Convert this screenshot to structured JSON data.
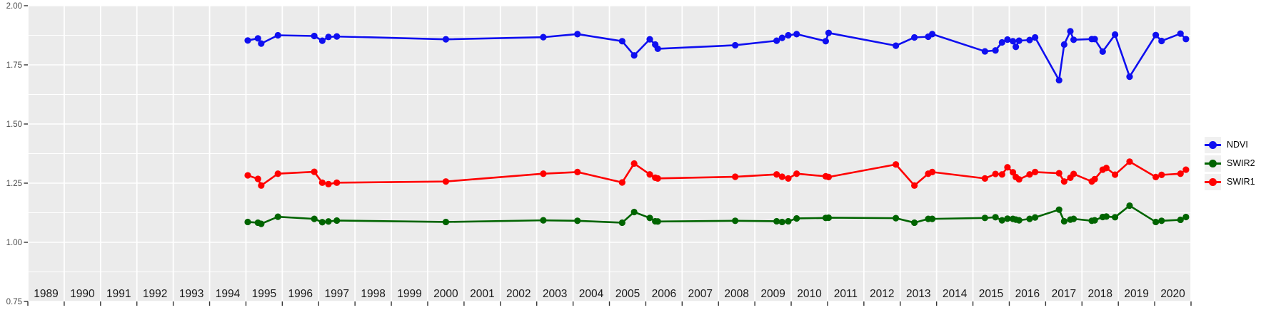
{
  "palette": {
    "background": "#FFFFFF",
    "panel_bg": "#EBEBEB",
    "grid": "#FFFFFF",
    "axis_tick": "#333333",
    "y_label_text": "#4D4D4D",
    "year_label_text": "#1A1A1A",
    "legend_key_bg": "#F0F0F0",
    "ndvi_blue": "#0F0FF0",
    "swir2_green": "#006400",
    "swir1_red": "#FF0000"
  },
  "chart_data": {
    "type": "line",
    "title": "",
    "xlabel": "",
    "ylabel": "",
    "grid": "on",
    "x_axis": {
      "year_labels": [
        "1989",
        "1990",
        "1991",
        "1992",
        "1993",
        "1994",
        "1995",
        "1996",
        "1997",
        "1998",
        "1999",
        "2000",
        "2001",
        "2002",
        "2003",
        "2004",
        "2005",
        "2006",
        "2007",
        "2008",
        "2009",
        "2010",
        "2011",
        "2012",
        "2013",
        "2014",
        "2015",
        "2016",
        "2017",
        "2018",
        "2019",
        "2020"
      ],
      "range_years": [
        1989,
        2021
      ]
    },
    "y_axis": {
      "tick_labels": [
        "2.00",
        "1.75",
        "1.50",
        "1.25",
        "1.00",
        "0.75"
      ],
      "tick_values": [
        2.0,
        1.75,
        1.5,
        1.25,
        1.0,
        0.75
      ],
      "minor_tick_values": [
        1.875,
        1.625,
        1.375,
        1.125,
        0.875
      ],
      "range": [
        0.75,
        2.0
      ]
    },
    "legend": {
      "position": "right",
      "entries": [
        "NDVI",
        "SWIR2",
        "SWIR1"
      ]
    },
    "series": [
      {
        "name": "NDVI",
        "color": "#0F0FF0",
        "x": [
          1995.05,
          1995.33,
          1995.42,
          1995.88,
          1996.88,
          1997.1,
          1997.27,
          1997.5,
          2000.5,
          2003.18,
          2004.12,
          2005.35,
          2005.68,
          2006.11,
          2006.26,
          2006.33,
          2008.46,
          2009.6,
          2009.75,
          2009.92,
          2010.15,
          2010.95,
          2011.03,
          2012.88,
          2013.39,
          2013.77,
          2013.88,
          2015.33,
          2015.62,
          2015.8,
          2015.95,
          2016.1,
          2016.18,
          2016.27,
          2016.56,
          2016.71,
          2017.37,
          2017.51,
          2017.68,
          2017.77,
          2018.27,
          2018.35,
          2018.57,
          2018.91,
          2019.31,
          2020.03,
          2020.19,
          2020.71,
          2020.86
        ],
        "y": [
          1.853,
          1.862,
          1.84,
          1.875,
          1.872,
          1.852,
          1.868,
          1.87,
          1.858,
          1.867,
          1.88,
          1.85,
          1.79,
          1.858,
          1.836,
          1.818,
          1.833,
          1.852,
          1.864,
          1.875,
          1.88,
          1.85,
          1.885,
          1.831,
          1.866,
          1.869,
          1.88,
          1.807,
          1.811,
          1.845,
          1.857,
          1.85,
          1.826,
          1.852,
          1.855,
          1.866,
          1.685,
          1.836,
          1.892,
          1.856,
          1.859,
          1.859,
          1.806,
          1.878,
          1.7,
          1.876,
          1.851,
          1.882,
          1.859
        ]
      },
      {
        "name": "SWIR2",
        "color": "#006400",
        "x": [
          1995.05,
          1995.33,
          1995.42,
          1995.88,
          1996.88,
          1997.1,
          1997.27,
          1997.5,
          2000.5,
          2003.18,
          2004.12,
          2005.35,
          2005.68,
          2006.11,
          2006.26,
          2006.33,
          2008.46,
          2009.6,
          2009.75,
          2009.92,
          2010.15,
          2010.95,
          2011.03,
          2012.88,
          2013.39,
          2013.77,
          2013.88,
          2015.33,
          2015.62,
          2015.8,
          2015.95,
          2016.1,
          2016.18,
          2016.27,
          2016.56,
          2016.71,
          2017.37,
          2017.51,
          2017.68,
          2017.77,
          2018.27,
          2018.35,
          2018.57,
          2018.67,
          2018.91,
          2019.31,
          2020.03,
          2020.19,
          2020.71,
          2020.86
        ],
        "y": [
          1.086,
          1.083,
          1.078,
          1.108,
          1.099,
          1.085,
          1.088,
          1.092,
          1.086,
          1.093,
          1.091,
          1.083,
          1.128,
          1.103,
          1.089,
          1.088,
          1.091,
          1.089,
          1.086,
          1.089,
          1.101,
          1.103,
          1.104,
          1.102,
          1.083,
          1.099,
          1.099,
          1.103,
          1.106,
          1.093,
          1.1,
          1.099,
          1.096,
          1.093,
          1.099,
          1.105,
          1.138,
          1.089,
          1.096,
          1.099,
          1.091,
          1.093,
          1.107,
          1.109,
          1.106,
          1.155,
          1.086,
          1.091,
          1.095,
          1.107
        ]
      },
      {
        "name": "SWIR1",
        "color": "#FF0000",
        "x": [
          1995.05,
          1995.33,
          1995.42,
          1995.88,
          1996.88,
          1997.1,
          1997.27,
          1997.5,
          2000.5,
          2003.18,
          2004.12,
          2005.35,
          2005.68,
          2006.11,
          2006.26,
          2006.33,
          2008.46,
          2009.6,
          2009.75,
          2009.92,
          2010.15,
          2010.95,
          2011.03,
          2012.88,
          2013.39,
          2013.77,
          2013.88,
          2015.33,
          2015.62,
          2015.8,
          2015.95,
          2016.1,
          2016.18,
          2016.27,
          2016.56,
          2016.71,
          2017.37,
          2017.51,
          2017.68,
          2017.77,
          2018.27,
          2018.35,
          2018.57,
          2018.67,
          2018.91,
          2019.31,
          2020.03,
          2020.19,
          2020.71,
          2020.86
        ],
        "y": [
          1.283,
          1.268,
          1.24,
          1.29,
          1.298,
          1.252,
          1.246,
          1.252,
          1.257,
          1.29,
          1.297,
          1.253,
          1.333,
          1.287,
          1.273,
          1.27,
          1.277,
          1.287,
          1.277,
          1.27,
          1.29,
          1.279,
          1.276,
          1.329,
          1.24,
          1.29,
          1.297,
          1.27,
          1.289,
          1.287,
          1.317,
          1.296,
          1.276,
          1.266,
          1.287,
          1.297,
          1.292,
          1.257,
          1.273,
          1.289,
          1.257,
          1.267,
          1.307,
          1.314,
          1.286,
          1.341,
          1.276,
          1.285,
          1.29,
          1.307
        ]
      }
    ]
  }
}
